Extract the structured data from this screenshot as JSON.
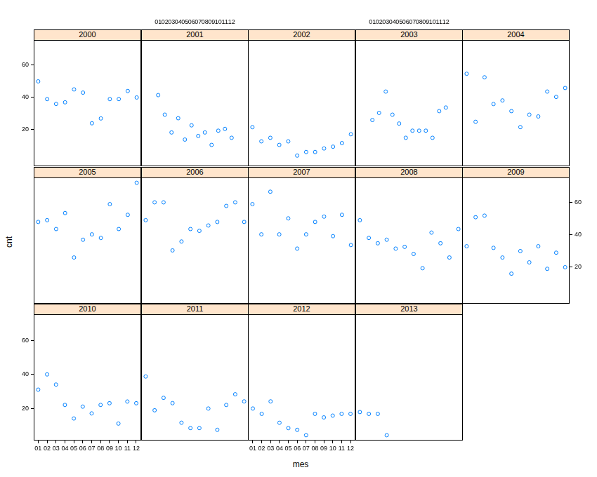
{
  "xlabel": "mes",
  "ylabel": "cnt",
  "chart_data": [
    {
      "type": "scatter",
      "title": "2000",
      "categories": [
        "01",
        "02",
        "03",
        "04",
        "05",
        "06",
        "07",
        "08",
        "09",
        "10",
        "11",
        "12"
      ],
      "values": [
        50,
        39,
        36,
        37,
        45,
        43,
        24,
        27,
        39,
        39,
        44,
        40
      ],
      "color": "#0080ff",
      "marker": "circle",
      "ylim": [
        1,
        72
      ],
      "yticks": [
        20,
        40,
        60
      ],
      "tick_labels": "y"
    },
    {
      "type": "scatter",
      "title": "2001",
      "categories": [
        "01",
        "02",
        "03",
        "04",
        "05",
        "06",
        "07",
        "08",
        "09",
        "10",
        "11",
        "12"
      ],
      "values": [
        41,
        30,
        20,
        28,
        16,
        24,
        18,
        20,
        13,
        21,
        22,
        17
      ],
      "color": "#0080ff",
      "marker": "circle",
      "ylim": [
        1,
        72
      ],
      "yticks": [
        20,
        40,
        60
      ],
      "tick_labels": "x"
    },
    {
      "type": "scatter",
      "title": "2002",
      "categories": [
        "01",
        "02",
        "03",
        "04",
        "05",
        "06",
        "07",
        "08",
        "09",
        "10",
        "11",
        "12"
      ],
      "values": [
        23,
        15,
        17,
        13,
        15,
        7,
        9,
        9,
        11,
        12,
        14,
        19
      ],
      "color": "#0080ff",
      "marker": "circle",
      "ylim": [
        1,
        72
      ],
      "yticks": [
        20,
        40,
        60
      ],
      "tick_labels": false
    },
    {
      "type": "scatter",
      "title": "2003",
      "categories": [
        "01",
        "02",
        "03",
        "04",
        "05",
        "06",
        "07",
        "08",
        "09",
        "10",
        "11",
        "12"
      ],
      "values": [
        27,
        31,
        43,
        30,
        25,
        17,
        21,
        21,
        21,
        17,
        32,
        34
      ],
      "color": "#0080ff",
      "marker": "circle",
      "ylim": [
        1,
        72
      ],
      "yticks": [
        20,
        40,
        60
      ],
      "tick_labels": "x"
    },
    {
      "type": "scatter",
      "title": "2004",
      "categories": [
        "01",
        "02",
        "03",
        "04",
        "05",
        "06",
        "07",
        "08",
        "09",
        "10",
        "11",
        "12"
      ],
      "values": [
        53,
        26,
        51,
        36,
        38,
        32,
        23,
        30,
        29,
        43,
        40,
        45
      ],
      "color": "#0080ff",
      "marker": "circle",
      "ylim": [
        1,
        72
      ],
      "yticks": [
        20,
        40,
        60
      ],
      "tick_labels": false
    },
    {
      "type": "scatter",
      "title": "2005",
      "categories": [
        "01",
        "02",
        "03",
        "04",
        "05",
        "06",
        "07",
        "08",
        "09",
        "10",
        "11",
        "12"
      ],
      "values": [
        47,
        48,
        43,
        52,
        27,
        37,
        40,
        38,
        57,
        43,
        51,
        69
      ],
      "color": "#0080ff",
      "marker": "circle",
      "ylim": [
        1,
        72
      ],
      "yticks": [
        20,
        40,
        60
      ],
      "tick_labels": false
    },
    {
      "type": "scatter",
      "title": "2006",
      "categories": [
        "01",
        "02",
        "03",
        "04",
        "05",
        "06",
        "07",
        "08",
        "09",
        "10",
        "11",
        "12"
      ],
      "values": [
        48,
        58,
        58,
        31,
        36,
        43,
        42,
        45,
        47,
        56,
        58,
        47
      ],
      "color": "#0080ff",
      "marker": "circle",
      "ylim": [
        1,
        72
      ],
      "yticks": [
        20,
        40,
        60
      ],
      "tick_labels": false
    },
    {
      "type": "scatter",
      "title": "2007",
      "categories": [
        "01",
        "02",
        "03",
        "04",
        "05",
        "06",
        "07",
        "08",
        "09",
        "10",
        "11",
        "12"
      ],
      "values": [
        57,
        40,
        64,
        40,
        49,
        32,
        40,
        47,
        50,
        39,
        51,
        34
      ],
      "color": "#0080ff",
      "marker": "circle",
      "ylim": [
        1,
        72
      ],
      "yticks": [
        20,
        40,
        60
      ],
      "tick_labels": false
    },
    {
      "type": "scatter",
      "title": "2008",
      "categories": [
        "01",
        "02",
        "03",
        "04",
        "05",
        "06",
        "07",
        "08",
        "09",
        "10",
        "11",
        "12"
      ],
      "values": [
        48,
        38,
        35,
        37,
        32,
        33,
        29,
        21,
        41,
        35,
        27,
        43
      ],
      "color": "#0080ff",
      "marker": "circle",
      "ylim": [
        1,
        72
      ],
      "yticks": [
        20,
        40,
        60
      ],
      "tick_labels": false
    },
    {
      "type": "scatter",
      "title": "2009",
      "categories": [
        "01",
        "02",
        "03",
        "04",
        "05",
        "06",
        "07",
        "08",
        "09",
        "10",
        "11",
        "12"
      ],
      "values": [
        33,
        51,
        52,
        32,
        26,
        16,
        30,
        23,
        33,
        19,
        29,
        20
      ],
      "color": "#0080ff",
      "marker": "circle",
      "ylim": [
        1,
        72
      ],
      "yticks": [
        20,
        40,
        60
      ],
      "tick_labels": "y"
    },
    {
      "type": "scatter",
      "title": "2010",
      "categories": [
        "01",
        "02",
        "03",
        "04",
        "05",
        "06",
        "07",
        "08",
        "09",
        "10",
        "11",
        "12"
      ],
      "values": [
        31,
        40,
        34,
        22,
        14,
        21,
        17,
        22,
        23,
        11,
        24,
        23
      ],
      "color": "#0080ff",
      "marker": "circle",
      "ylim": [
        1,
        72
      ],
      "yticks": [
        20,
        40,
        60
      ]
    },
    {
      "type": "scatter",
      "title": "2011",
      "categories": [
        "01",
        "02",
        "03",
        "04",
        "05",
        "06",
        "07",
        "08",
        "09",
        "10",
        "11",
        "12"
      ],
      "values": [
        37,
        18,
        25,
        22,
        11,
        8,
        8,
        19,
        7,
        21,
        27,
        23
      ],
      "color": "#0080ff",
      "marker": "circle",
      "ylim": [
        1,
        72
      ],
      "yticks": [
        20,
        40,
        60
      ],
      "tick_labels": false
    },
    {
      "type": "scatter",
      "title": "2012",
      "categories": [
        "01",
        "02",
        "03",
        "04",
        "05",
        "06",
        "07",
        "08",
        "09",
        "10",
        "11",
        "12"
      ],
      "values": [
        19,
        16,
        23,
        11,
        8,
        7,
        4,
        16,
        14,
        15,
        16,
        16
      ],
      "color": "#0080ff",
      "marker": "circle",
      "ylim": [
        1,
        72
      ],
      "yticks": [
        20,
        40,
        60
      ],
      "tick_labels": "x"
    },
    {
      "type": "scatter",
      "title": "2013",
      "categories": [
        "01",
        "02",
        "03",
        "04",
        "05",
        "06",
        "07",
        "08",
        "09",
        "10",
        "11",
        "12"
      ],
      "values": [
        17,
        16,
        16,
        4,
        null,
        null,
        null,
        null,
        null,
        null,
        null,
        null
      ],
      "color": "#0080ff",
      "marker": "circle",
      "ylim": [
        1,
        72
      ],
      "yticks": [
        20,
        40,
        60
      ],
      "tick_labels": false
    }
  ]
}
